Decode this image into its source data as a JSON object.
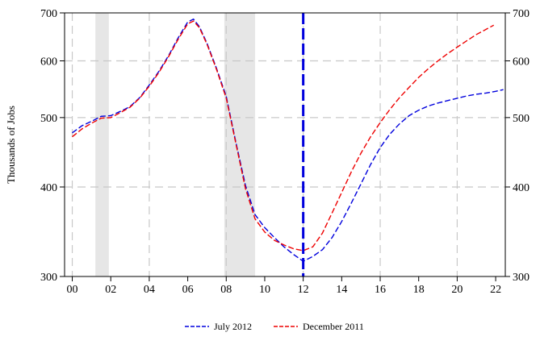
{
  "chart_data": {
    "type": "line",
    "ylabel": "Thousands of Jobs",
    "ylim": [
      300,
      700
    ],
    "y_scale": "log",
    "xlim": [
      1999.6,
      2022.5
    ],
    "x_tick_values": [
      2000,
      2002,
      2004,
      2006,
      2008,
      2010,
      2012,
      2014,
      2016,
      2018,
      2020,
      2022
    ],
    "x_tick_labels": [
      "00",
      "02",
      "04",
      "06",
      "08",
      "10",
      "12",
      "14",
      "16",
      "18",
      "20",
      "22"
    ],
    "y_ticks": [
      {
        "value": 300,
        "label": "300"
      },
      {
        "value": 400,
        "label": "400"
      },
      {
        "value": 500,
        "label": "500"
      },
      {
        "value": 600,
        "label": "600"
      },
      {
        "value": 700,
        "label": "700"
      }
    ],
    "grid": true,
    "right_axis": true,
    "legend_position": "bottom",
    "recession_shading": [
      [
        2001.2,
        2001.9
      ],
      [
        2007.9,
        2009.5
      ]
    ],
    "forecast_marker_x": 2012.0,
    "series": [
      {
        "name": "July 2012",
        "color": "#0000dd",
        "style": "dashed",
        "points": [
          [
            2000.0,
            476
          ],
          [
            2000.5,
            487
          ],
          [
            2001.0,
            494
          ],
          [
            2001.5,
            502
          ],
          [
            2002.0,
            503
          ],
          [
            2002.5,
            510
          ],
          [
            2003.0,
            518
          ],
          [
            2003.5,
            533
          ],
          [
            2004.0,
            555
          ],
          [
            2004.5,
            580
          ],
          [
            2005.0,
            610
          ],
          [
            2005.5,
            646
          ],
          [
            2006.0,
            680
          ],
          [
            2006.3,
            686
          ],
          [
            2006.6,
            670
          ],
          [
            2007.0,
            635
          ],
          [
            2007.5,
            585
          ],
          [
            2008.0,
            535
          ],
          [
            2008.5,
            462
          ],
          [
            2009.0,
            402
          ],
          [
            2009.5,
            366
          ],
          [
            2010.0,
            351
          ],
          [
            2010.5,
            340
          ],
          [
            2011.0,
            330
          ],
          [
            2011.5,
            322
          ],
          [
            2012.0,
            315
          ],
          [
            2012.5,
            320
          ],
          [
            2013.0,
            327
          ],
          [
            2013.5,
            340
          ],
          [
            2014.0,
            358
          ],
          [
            2014.5,
            380
          ],
          [
            2015.0,
            404
          ],
          [
            2015.5,
            430
          ],
          [
            2016.0,
            454
          ],
          [
            2016.5,
            474
          ],
          [
            2017.0,
            490
          ],
          [
            2017.5,
            503
          ],
          [
            2018.0,
            512
          ],
          [
            2018.5,
            519
          ],
          [
            2019.0,
            524
          ],
          [
            2019.5,
            528
          ],
          [
            2020.0,
            532
          ],
          [
            2020.5,
            536
          ],
          [
            2021.0,
            539
          ],
          [
            2021.5,
            541
          ],
          [
            2022.0,
            544
          ],
          [
            2022.4,
            547
          ]
        ]
      },
      {
        "name": "December 2011",
        "color": "#ee0000",
        "style": "dashed",
        "points": [
          [
            2000.0,
            470
          ],
          [
            2000.5,
            482
          ],
          [
            2001.0,
            491
          ],
          [
            2001.5,
            499
          ],
          [
            2002.0,
            500
          ],
          [
            2002.5,
            508
          ],
          [
            2003.0,
            517
          ],
          [
            2003.5,
            532
          ],
          [
            2004.0,
            553
          ],
          [
            2004.5,
            578
          ],
          [
            2005.0,
            608
          ],
          [
            2005.5,
            643
          ],
          [
            2006.0,
            676
          ],
          [
            2006.3,
            682
          ],
          [
            2006.6,
            668
          ],
          [
            2007.0,
            633
          ],
          [
            2007.5,
            583
          ],
          [
            2008.0,
            532
          ],
          [
            2008.5,
            460
          ],
          [
            2009.0,
            398
          ],
          [
            2009.5,
            361
          ],
          [
            2010.0,
            346
          ],
          [
            2010.5,
            337
          ],
          [
            2011.0,
            332
          ],
          [
            2011.5,
            328
          ],
          [
            2012.0,
            326
          ],
          [
            2012.5,
            330
          ],
          [
            2013.0,
            345
          ],
          [
            2013.5,
            368
          ],
          [
            2014.0,
            393
          ],
          [
            2014.5,
            420
          ],
          [
            2015.0,
            446
          ],
          [
            2015.5,
            470
          ],
          [
            2016.0,
            492
          ],
          [
            2016.5,
            513
          ],
          [
            2017.0,
            533
          ],
          [
            2017.5,
            551
          ],
          [
            2018.0,
            569
          ],
          [
            2018.5,
            585
          ],
          [
            2019.0,
            600
          ],
          [
            2019.5,
            614
          ],
          [
            2020.0,
            627
          ],
          [
            2020.5,
            640
          ],
          [
            2021.0,
            653
          ],
          [
            2021.5,
            664
          ],
          [
            2021.9,
            673
          ]
        ]
      }
    ]
  }
}
